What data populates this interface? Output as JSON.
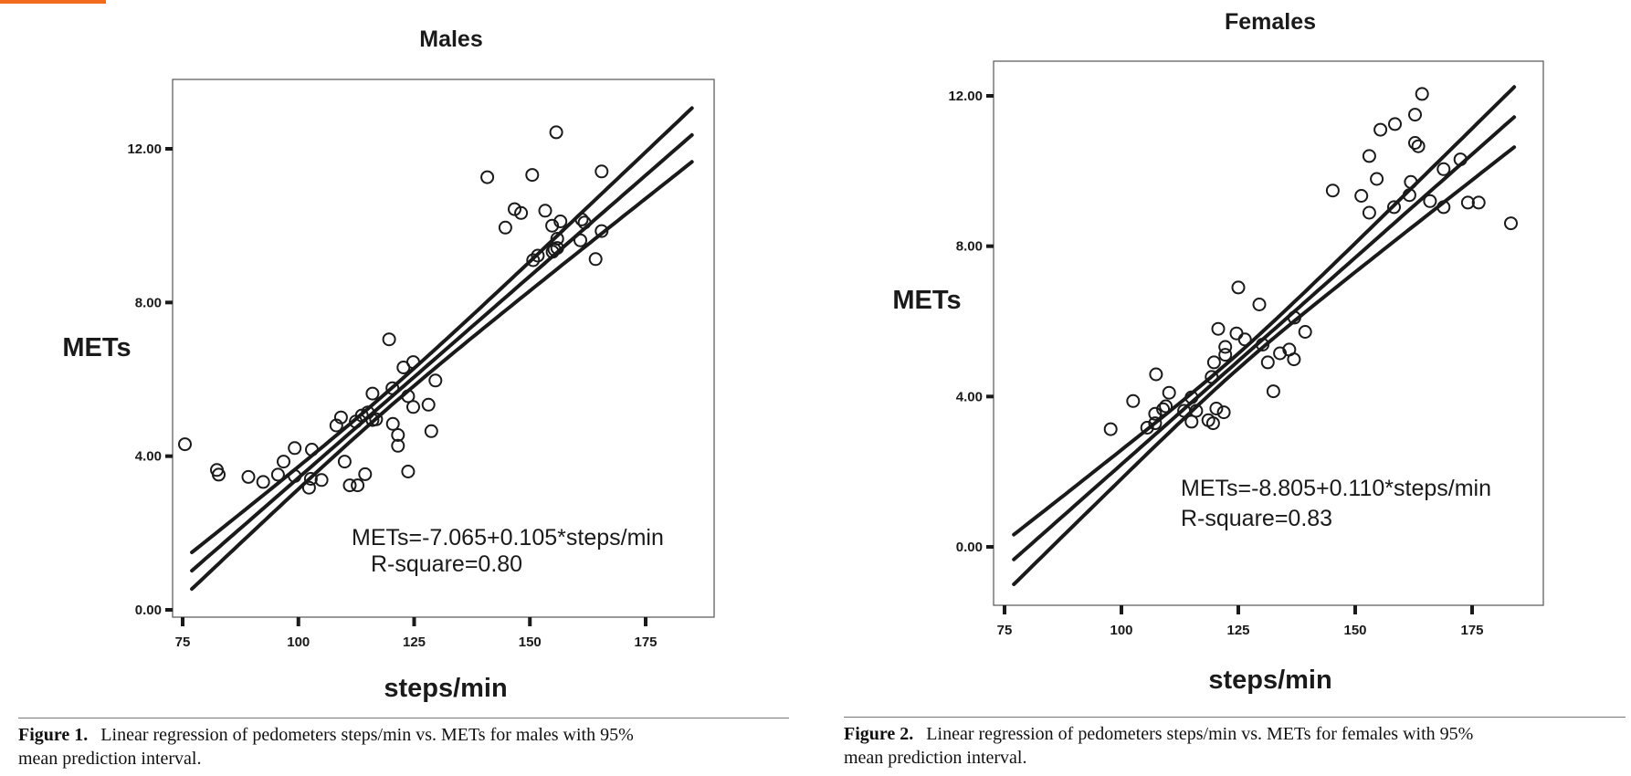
{
  "chart_data": [
    {
      "type": "scatter",
      "title": "Males",
      "xlabel": "steps/min",
      "ylabel": "METs",
      "xlim": [
        73,
        190
      ],
      "ylim": [
        -0.25,
        13.5
      ],
      "xticks": [
        75,
        100,
        125,
        150,
        175
      ],
      "xtick_labels": [
        "75",
        "100",
        "125",
        "150",
        "175"
      ],
      "yticks": [
        0,
        4,
        8,
        12
      ],
      "ytick_labels": [
        "0.00",
        "4.00",
        "8.00",
        "12.00"
      ],
      "grid": false,
      "regression": {
        "intercept": -7.065,
        "slope": 0.105,
        "x_range": [
          77,
          185
        ],
        "band_halfwidth_ends": 0.7,
        "band_halfwidth_center": 0.22,
        "band_center_x": 119
      },
      "annotation_equation": "METs=-7.065+0.105*steps/min",
      "annotation_r2": "R-square=0.80",
      "points": [
        [
          75.5,
          4.31
        ],
        [
          82.4,
          3.64
        ],
        [
          82.8,
          3.52
        ],
        [
          89.2,
          3.46
        ],
        [
          92.4,
          3.33
        ],
        [
          95.6,
          3.52
        ],
        [
          96.8,
          3.86
        ],
        [
          99.2,
          4.21
        ],
        [
          99.2,
          3.48
        ],
        [
          102.9,
          4.17
        ],
        [
          102.7,
          3.41
        ],
        [
          102.3,
          3.18
        ],
        [
          105.0,
          3.38
        ],
        [
          108.2,
          4.8
        ],
        [
          109.2,
          5.01
        ],
        [
          110.0,
          3.86
        ],
        [
          111.1,
          3.24
        ],
        [
          112.8,
          3.24
        ],
        [
          114.4,
          3.53
        ],
        [
          112.4,
          4.9
        ],
        [
          113.7,
          5.06
        ],
        [
          115.0,
          5.14
        ],
        [
          116.0,
          4.94
        ],
        [
          116.8,
          4.96
        ],
        [
          116.0,
          5.63
        ],
        [
          119.6,
          7.04
        ],
        [
          120.3,
          5.77
        ],
        [
          120.4,
          4.84
        ],
        [
          121.5,
          4.55
        ],
        [
          121.5,
          4.27
        ],
        [
          123.7,
          3.6
        ],
        [
          122.7,
          6.31
        ],
        [
          124.8,
          6.45
        ],
        [
          123.7,
          5.56
        ],
        [
          124.8,
          5.28
        ],
        [
          128.1,
          5.34
        ],
        [
          129.6,
          5.97
        ],
        [
          128.7,
          4.65
        ],
        [
          155.7,
          12.43
        ],
        [
          140.8,
          11.26
        ],
        [
          150.5,
          11.32
        ],
        [
          165.5,
          11.41
        ],
        [
          146.7,
          10.43
        ],
        [
          148.1,
          10.33
        ],
        [
          153.3,
          10.39
        ],
        [
          144.7,
          9.95
        ],
        [
          154.8,
          10.0
        ],
        [
          156.6,
          10.11
        ],
        [
          161.2,
          10.16
        ],
        [
          161.8,
          10.08
        ],
        [
          165.5,
          9.86
        ],
        [
          155.9,
          9.66
        ],
        [
          160.9,
          9.62
        ],
        [
          164.2,
          9.13
        ],
        [
          151.7,
          9.22
        ],
        [
          150.7,
          9.1
        ],
        [
          155.3,
          9.38
        ],
        [
          154.9,
          9.32
        ],
        [
          155.9,
          9.42
        ]
      ]
    },
    {
      "type": "scatter",
      "title": "Females",
      "xlabel": "steps/min",
      "ylabel": "METs",
      "xlim": [
        72.5,
        190
      ],
      "ylim": [
        -1.55,
        12.9
      ],
      "xticks": [
        75,
        100,
        125,
        150,
        175
      ],
      "xtick_labels": [
        "75",
        "100",
        "125",
        "150",
        "175"
      ],
      "yticks": [
        0,
        4,
        8,
        12
      ],
      "ytick_labels": [
        "0.00",
        "4.00",
        "8.00",
        "12.00"
      ],
      "grid": false,
      "regression": {
        "intercept": -8.805,
        "slope": 0.11,
        "x_range": [
          77,
          184
        ],
        "band_halfwidth_ends": 0.8,
        "band_halfwidth_center": 0.2,
        "band_center_x": 125
      },
      "annotation_equation": "METs=-8.805+0.110*steps/min",
      "annotation_r2": "R-square=0.83",
      "points": [
        [
          97.7,
          3.13
        ],
        [
          102.5,
          3.88
        ],
        [
          107.4,
          4.59
        ],
        [
          110.2,
          4.1
        ],
        [
          105.5,
          3.17
        ],
        [
          107.2,
          3.54
        ],
        [
          108.9,
          3.66
        ],
        [
          109.5,
          3.74
        ],
        [
          107.2,
          3.29
        ],
        [
          113.4,
          3.62
        ],
        [
          115.0,
          3.98
        ],
        [
          116.0,
          3.62
        ],
        [
          115.0,
          3.33
        ],
        [
          118.6,
          3.37
        ],
        [
          119.6,
          3.29
        ],
        [
          120.3,
          3.68
        ],
        [
          121.9,
          3.58
        ],
        [
          119.3,
          4.52
        ],
        [
          119.8,
          4.91
        ],
        [
          122.2,
          5.32
        ],
        [
          122.2,
          5.11
        ],
        [
          120.7,
          5.8
        ],
        [
          124.6,
          5.68
        ],
        [
          126.4,
          5.52
        ],
        [
          125.0,
          6.9
        ],
        [
          129.5,
          6.45
        ],
        [
          130.2,
          5.38
        ],
        [
          131.3,
          4.91
        ],
        [
          133.9,
          5.15
        ],
        [
          135.9,
          5.25
        ],
        [
          136.9,
          4.99
        ],
        [
          132.5,
          4.14
        ],
        [
          139.3,
          5.72
        ],
        [
          137.0,
          6.1
        ],
        [
          164.3,
          12.05
        ],
        [
          162.8,
          11.5
        ],
        [
          158.5,
          11.25
        ],
        [
          155.4,
          11.1
        ],
        [
          162.8,
          10.75
        ],
        [
          163.5,
          10.66
        ],
        [
          153.0,
          10.4
        ],
        [
          154.6,
          9.79
        ],
        [
          145.2,
          9.48
        ],
        [
          151.3,
          9.34
        ],
        [
          153.0,
          8.89
        ],
        [
          158.3,
          9.04
        ],
        [
          161.9,
          9.71
        ],
        [
          161.6,
          9.36
        ],
        [
          168.9,
          10.05
        ],
        [
          172.5,
          10.31
        ],
        [
          166.0,
          9.2
        ],
        [
          168.9,
          9.04
        ],
        [
          174.1,
          9.16
        ],
        [
          176.4,
          9.16
        ],
        [
          183.3,
          8.61
        ]
      ]
    }
  ],
  "captions": [
    {
      "label": "Figure 1.",
      "text": "Linear regression of pedometers steps/min vs. METs for males with 95%",
      "text2": "mean prediction interval."
    },
    {
      "label": "Figure 2.",
      "text": "Linear regression of pedometers steps/min vs. METs for females with 95%",
      "text2": "mean prediction interval."
    }
  ],
  "accent_color": "#f26b1d"
}
